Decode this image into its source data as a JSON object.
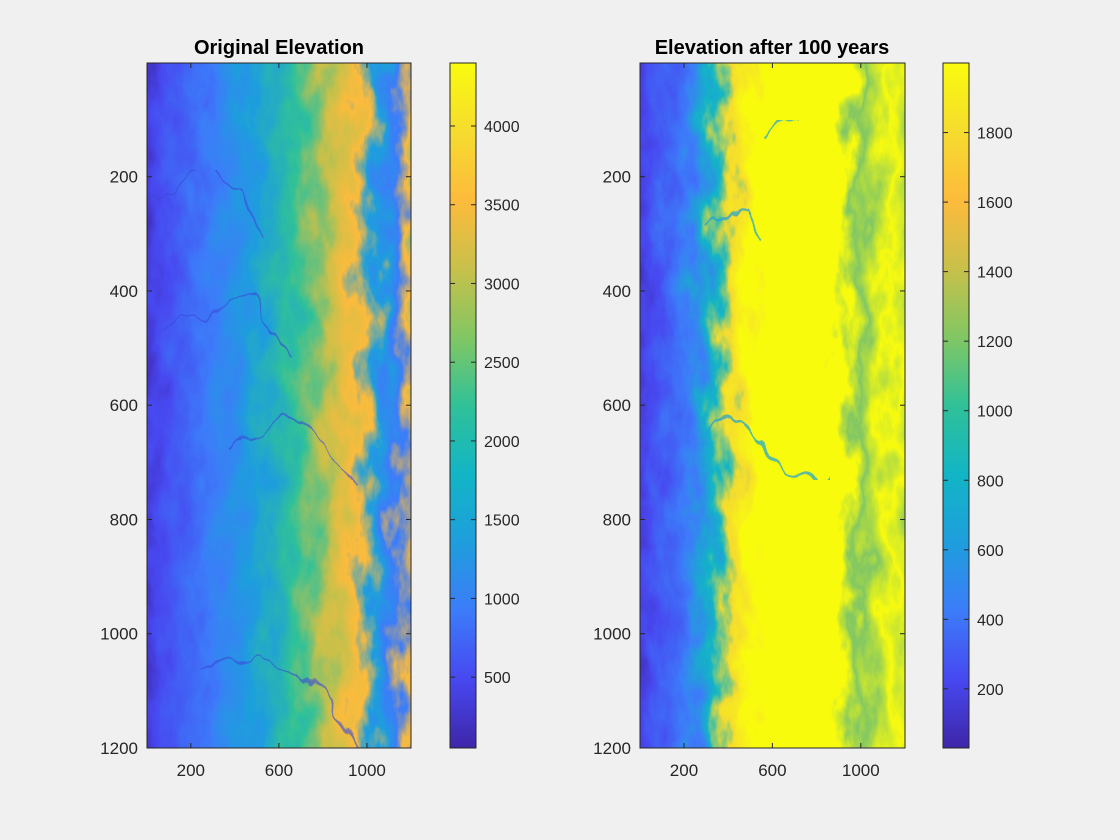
{
  "colormap": [
    "#3e26a8",
    "#4748f0",
    "#3c7cf9",
    "#1e9edd",
    "#12b5c5",
    "#30c198",
    "#82c763",
    "#c8c04a",
    "#fdbb3c",
    "#f5dc2e",
    "#f9fb0e"
  ],
  "chart_data": [
    {
      "type": "heatmap",
      "title": "Original Elevation",
      "xlabel": "",
      "ylabel": "",
      "x_ticks": [
        "200",
        "600",
        "1000"
      ],
      "y_ticks": [
        "200",
        "400",
        "600",
        "800",
        "1000",
        "1200"
      ],
      "xlim": [
        1,
        1200
      ],
      "ylim": [
        1,
        1200
      ],
      "y_reversed": true,
      "colorbar": {
        "range": [
          50,
          4400
        ],
        "ticks": [
          "500",
          "1000",
          "1500",
          "2000",
          "2500",
          "3000",
          "3500",
          "4000"
        ]
      }
    },
    {
      "type": "heatmap",
      "title": "Elevation after 100 years",
      "xlabel": "",
      "ylabel": "",
      "x_ticks": [
        "200",
        "600",
        "1000"
      ],
      "y_ticks": [
        "200",
        "400",
        "600",
        "800",
        "1000",
        "1200"
      ],
      "xlim": [
        1,
        1200
      ],
      "ylim": [
        1,
        1200
      ],
      "y_reversed": true,
      "colorbar": {
        "range": [
          30,
          2000
        ],
        "ticks": [
          "200",
          "400",
          "600",
          "800",
          "1000",
          "1200",
          "1400",
          "1600",
          "1800"
        ]
      }
    }
  ]
}
